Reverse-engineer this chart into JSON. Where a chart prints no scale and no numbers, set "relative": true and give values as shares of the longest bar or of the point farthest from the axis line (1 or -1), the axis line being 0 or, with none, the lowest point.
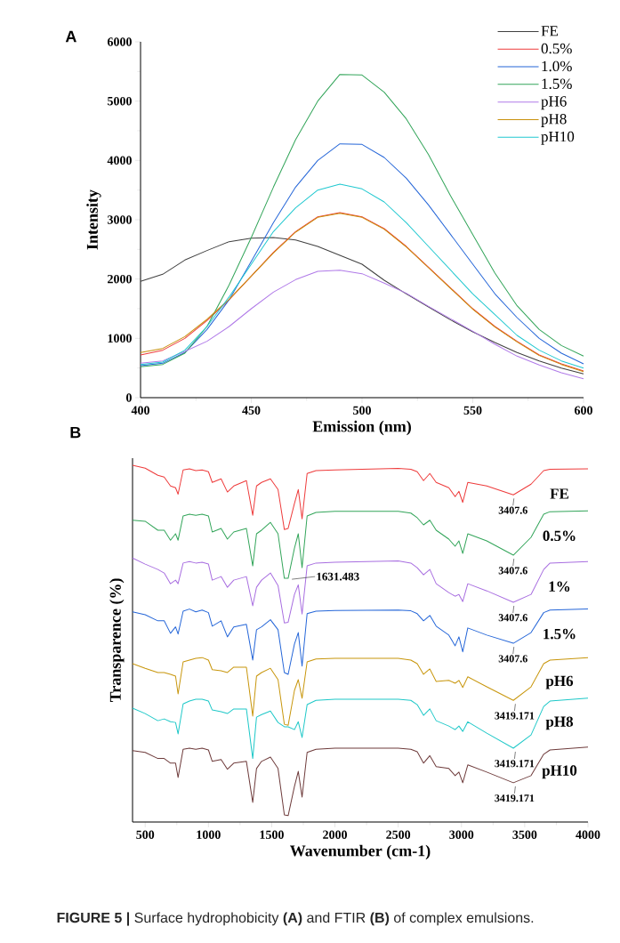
{
  "chart_data": [
    {
      "type": "line",
      "title": "A",
      "xlabel": "Emission (nm)",
      "ylabel": "Intensity",
      "xlim": [
        400,
        600
      ],
      "xticks": [
        400,
        450,
        500,
        550,
        600
      ],
      "ylim": [
        0,
        6000
      ],
      "yticks": [
        0,
        1000,
        2000,
        3000,
        4000,
        5000,
        6000
      ],
      "legend": "top right",
      "x": [
        400,
        410,
        420,
        430,
        440,
        450,
        460,
        470,
        480,
        490,
        500,
        510,
        520,
        530,
        540,
        550,
        560,
        570,
        580,
        590,
        600
      ],
      "series": [
        {
          "name": "FE",
          "color": "#404040",
          "values": [
            1960,
            2080,
            2320,
            2480,
            2630,
            2690,
            2700,
            2660,
            2550,
            2400,
            2250,
            1980,
            1750,
            1530,
            1310,
            1110,
            930,
            760,
            620,
            500,
            400
          ]
        },
        {
          "name": "0.5%",
          "color": "#ee3b3b",
          "values": [
            720,
            800,
            1000,
            1300,
            1650,
            2050,
            2450,
            2800,
            3050,
            3120,
            3050,
            2850,
            2550,
            2200,
            1850,
            1500,
            1200,
            950,
            720,
            570,
            450
          ]
        },
        {
          "name": "1.0%",
          "color": "#2566d8",
          "values": [
            540,
            580,
            760,
            1150,
            1650,
            2300,
            2950,
            3550,
            4000,
            4280,
            4270,
            4050,
            3700,
            3250,
            2750,
            2250,
            1750,
            1350,
            1000,
            750,
            570
          ]
        },
        {
          "name": "1.5%",
          "color": "#33a55a",
          "values": [
            520,
            560,
            750,
            1200,
            1900,
            2700,
            3550,
            4350,
            5000,
            5450,
            5440,
            5150,
            4700,
            4100,
            3400,
            2750,
            2100,
            1550,
            1150,
            880,
            700
          ]
        },
        {
          "name": "pH6",
          "color": "#b07ae8",
          "values": [
            580,
            620,
            780,
            950,
            1200,
            1500,
            1780,
            1990,
            2130,
            2150,
            2090,
            1930,
            1760,
            1540,
            1330,
            1120,
            900,
            700,
            550,
            420,
            320
          ]
        },
        {
          "name": "pH8",
          "color": "#c8900c",
          "values": [
            760,
            830,
            1030,
            1320,
            1660,
            2050,
            2440,
            2790,
            3040,
            3110,
            3040,
            2840,
            2540,
            2190,
            1840,
            1490,
            1190,
            940,
            710,
            560,
            440
          ]
        },
        {
          "name": "pH10",
          "color": "#20c8d0",
          "values": [
            560,
            600,
            800,
            1200,
            1700,
            2250,
            2800,
            3200,
            3500,
            3600,
            3520,
            3300,
            2950,
            2550,
            2150,
            1750,
            1400,
            1050,
            800,
            620,
            500
          ]
        }
      ]
    },
    {
      "type": "line",
      "title": "B",
      "xlabel": "Wavenumber (cm-1)",
      "ylabel": "Transparence (%)",
      "xlim": [
        400,
        4000
      ],
      "xticks": [
        500,
        1000,
        1500,
        2000,
        2500,
        3000,
        3500,
        4000
      ],
      "relative": true,
      "x": [
        400,
        500,
        600,
        650,
        700,
        740,
        760,
        800,
        850,
        900,
        950,
        1000,
        1030,
        1100,
        1150,
        1200,
        1300,
        1350,
        1380,
        1420,
        1490,
        1550,
        1600,
        1630,
        1680,
        1710,
        1740,
        1780,
        1850,
        2000,
        2500,
        2600,
        2650,
        2700,
        2750,
        2800,
        2900,
        2950,
        2980,
        3010,
        3050,
        3200,
        3410,
        3550,
        3650,
        3700,
        4000
      ],
      "series": [
        {
          "name": "FE",
          "color": "#ee3b3b",
          "values": [
            1.0,
            0.992,
            0.972,
            0.967,
            0.942,
            0.937,
            0.919,
            0.987,
            0.99,
            0.985,
            0.987,
            0.982,
            0.952,
            0.962,
            0.925,
            0.942,
            0.957,
            0.86,
            0.942,
            0.952,
            0.962,
            0.932,
            0.82,
            0.823,
            0.893,
            0.932,
            0.85,
            0.977,
            0.985,
            0.987,
            0.991,
            0.989,
            0.982,
            0.957,
            0.977,
            0.952,
            0.937,
            0.912,
            0.927,
            0.896,
            0.952,
            0.942,
            0.917,
            0.947,
            0.985,
            0.989,
            0.99
          ]
        },
        {
          "name": "0.5%",
          "color": "#33a55a",
          "values": [
            0.846,
            0.843,
            0.818,
            0.818,
            0.79,
            0.808,
            0.79,
            0.858,
            0.863,
            0.86,
            0.863,
            0.858,
            0.813,
            0.823,
            0.793,
            0.813,
            0.823,
            0.718,
            0.808,
            0.818,
            0.84,
            0.808,
            0.683,
            0.683,
            0.768,
            0.808,
            0.713,
            0.858,
            0.868,
            0.871,
            0.871,
            0.866,
            0.853,
            0.833,
            0.846,
            0.818,
            0.793,
            0.773,
            0.788,
            0.753,
            0.808,
            0.788,
            0.748,
            0.798,
            0.863,
            0.87,
            0.872
          ]
        },
        {
          "name": "1%",
          "color": "#a86ee0",
          "values": [
            0.74,
            0.723,
            0.708,
            0.698,
            0.668,
            0.678,
            0.668,
            0.726,
            0.73,
            0.726,
            0.728,
            0.723,
            0.678,
            0.688,
            0.658,
            0.678,
            0.688,
            0.606,
            0.658,
            0.678,
            0.698,
            0.663,
            0.558,
            0.56,
            0.638,
            0.665,
            0.583,
            0.718,
            0.726,
            0.728,
            0.732,
            0.726,
            0.713,
            0.693,
            0.708,
            0.668,
            0.643,
            0.633,
            0.638,
            0.618,
            0.668,
            0.648,
            0.616,
            0.638,
            0.708,
            0.726,
            0.73
          ]
        },
        {
          "name": "1.5%",
          "color": "#2566d8",
          "values": [
            0.589,
            0.581,
            0.564,
            0.564,
            0.529,
            0.547,
            0.527,
            0.591,
            0.597,
            0.589,
            0.594,
            0.587,
            0.549,
            0.564,
            0.519,
            0.547,
            0.554,
            0.454,
            0.539,
            0.547,
            0.567,
            0.539,
            0.419,
            0.414,
            0.499,
            0.531,
            0.437,
            0.584,
            0.591,
            0.593,
            0.594,
            0.592,
            0.584,
            0.564,
            0.579,
            0.549,
            0.524,
            0.494,
            0.519,
            0.477,
            0.544,
            0.524,
            0.501,
            0.531,
            0.587,
            0.594,
            0.597
          ]
        },
        {
          "name": "pH6",
          "color": "#c8960c",
          "values": [
            0.444,
            0.431,
            0.419,
            0.419,
            0.414,
            0.409,
            0.359,
            0.449,
            0.454,
            0.459,
            0.461,
            0.454,
            0.427,
            0.424,
            0.419,
            0.434,
            0.434,
            0.297,
            0.409,
            0.419,
            0.431,
            0.399,
            0.274,
            0.271,
            0.369,
            0.399,
            0.347,
            0.449,
            0.457,
            0.459,
            0.459,
            0.454,
            0.444,
            0.414,
            0.429,
            0.394,
            0.397,
            0.389,
            0.397,
            0.377,
            0.407,
            0.379,
            0.341,
            0.379,
            0.444,
            0.454,
            0.461
          ]
        },
        {
          "name": "pH8",
          "color": "#1ec8c8",
          "values": [
            0.319,
            0.304,
            0.284,
            0.289,
            0.281,
            0.279,
            0.247,
            0.331,
            0.339,
            0.344,
            0.344,
            0.339,
            0.314,
            0.309,
            0.304,
            0.317,
            0.317,
            0.178,
            0.294,
            0.301,
            0.311,
            0.279,
            0.267,
            0.267,
            0.259,
            0.281,
            0.237,
            0.329,
            0.341,
            0.344,
            0.344,
            0.341,
            0.329,
            0.299,
            0.317,
            0.284,
            0.269,
            0.259,
            0.269,
            0.254,
            0.281,
            0.249,
            0.207,
            0.244,
            0.324,
            0.339,
            0.347
          ]
        },
        {
          "name": "pH10",
          "color": "#6e3b3b",
          "values": [
            0.2,
            0.195,
            0.178,
            0.178,
            0.165,
            0.165,
            0.125,
            0.204,
            0.207,
            0.204,
            0.207,
            0.202,
            0.17,
            0.175,
            0.148,
            0.165,
            0.17,
            0.055,
            0.15,
            0.17,
            0.182,
            0.15,
            0.02,
            0.018,
            0.1,
            0.142,
            0.07,
            0.195,
            0.204,
            0.207,
            0.207,
            0.204,
            0.197,
            0.165,
            0.186,
            0.155,
            0.15,
            0.13,
            0.14,
            0.11,
            0.16,
            0.14,
            0.11,
            0.13,
            0.19,
            0.202,
            0.21
          ]
        }
      ],
      "annotations": [
        {
          "text": "3407.6",
          "x": 3407.6,
          "y": 0.917
        },
        {
          "text": "3407.6",
          "x": 3407.6,
          "y": 0.748
        },
        {
          "text": "1631.483",
          "x": 1631.483,
          "y": 0.683
        },
        {
          "text": "3407.6",
          "x": 3407.6,
          "y": 0.616
        },
        {
          "text": "3407.6",
          "x": 3407.6,
          "y": 0.501
        },
        {
          "text": "3419.171",
          "x": 3419.171,
          "y": 0.341
        },
        {
          "text": "3419.171",
          "x": 3419.171,
          "y": 0.207
        },
        {
          "text": "3419.171",
          "x": 3419.171,
          "y": 0.11
        },
        "**FIGURE 5 |** Surface hydrophobicity **(A)** and FTIR **(B)** of complex emulsions."
      ]
    }
  ]
}
